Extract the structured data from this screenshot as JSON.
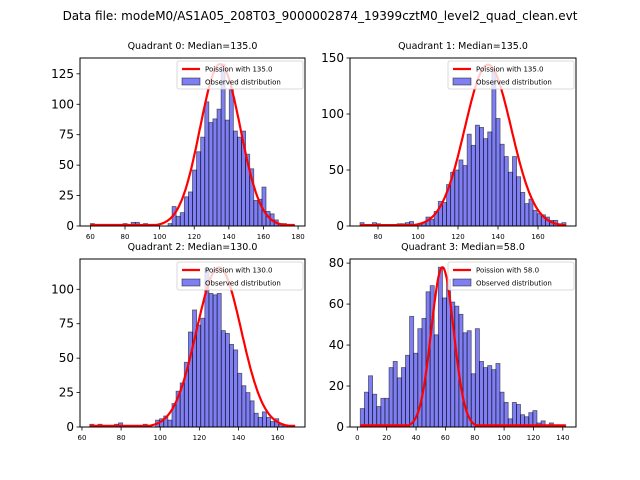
{
  "suptitle": "Data file: modeM0/AS1A05_208T03_9000002874_19399cztM0_level2_quad_clean.evt",
  "chart_data": [
    {
      "type": "bar",
      "title": "Quadrant 0: Median=135.0",
      "xlim": [
        54,
        184
      ],
      "ylim": [
        0,
        138
      ],
      "xticks": [
        60,
        80,
        100,
        120,
        140,
        160,
        180
      ],
      "yticks": [
        0,
        25,
        50,
        75,
        100,
        125
      ],
      "bin_start": 60,
      "bin_width": 2.36,
      "values": [
        2,
        0,
        0,
        0,
        1,
        0,
        0,
        0,
        2,
        0,
        3,
        3,
        0,
        2,
        0,
        0,
        0,
        0,
        0,
        2,
        16,
        8,
        11,
        24,
        28,
        46,
        61,
        73,
        102,
        85,
        88,
        96,
        133,
        87,
        112,
        78,
        73,
        78,
        59,
        47,
        21,
        22,
        32,
        12,
        10,
        5,
        2,
        2,
        1,
        1
      ],
      "legend": {
        "line_label": "Poission with 135.0",
        "bar_label": "Observed distribution"
      },
      "poisson_mean": 135.0,
      "poisson_peak": 133
    },
    {
      "type": "bar",
      "title": "Quadrant 1: Median=135.0",
      "xlim": [
        66,
        179
      ],
      "ylim": [
        0,
        150
      ],
      "xticks": [
        80,
        100,
        120,
        140,
        160
      ],
      "yticks": [
        0,
        50,
        100,
        150
      ],
      "bin_start": 71,
      "bin_width": 2.06,
      "values": [
        3,
        0,
        0,
        3,
        2,
        0,
        0,
        0,
        0,
        2,
        2,
        3,
        4,
        0,
        2,
        3,
        8,
        6,
        13,
        22,
        21,
        37,
        48,
        50,
        59,
        54,
        82,
        72,
        90,
        88,
        78,
        84,
        138,
        96,
        73,
        62,
        48,
        62,
        44,
        30,
        20,
        24,
        14,
        11,
        10,
        8,
        5,
        5,
        2,
        3
      ],
      "legend": {
        "line_label": "Poission with 135.0",
        "bar_label": "Observed distribution"
      },
      "poisson_mean": 135.0,
      "poisson_peak": 144
    },
    {
      "type": "bar",
      "title": "Quadrant 2: Median=130.0",
      "xlim": [
        59,
        174
      ],
      "ylim": [
        0,
        122
      ],
      "xticks": [
        60,
        80,
        100,
        120,
        140,
        160
      ],
      "yticks": [
        0,
        25,
        50,
        75,
        100
      ],
      "bin_start": 64,
      "bin_width": 2.1,
      "values": [
        2,
        0,
        2,
        0,
        0,
        0,
        2,
        3,
        0,
        0,
        0,
        0,
        0,
        2,
        0,
        0,
        5,
        6,
        8,
        5,
        17,
        26,
        32,
        47,
        69,
        85,
        74,
        79,
        115,
        97,
        96,
        97,
        70,
        68,
        60,
        56,
        39,
        30,
        25,
        19,
        10,
        7,
        11,
        7,
        4,
        6,
        2,
        1,
        0,
        0
      ],
      "legend": {
        "line_label": "Poission with 130.0",
        "bar_label": "Observed distribution"
      },
      "poisson_mean": 130.0,
      "poisson_peak": 116
    },
    {
      "type": "bar",
      "title": "Quadrant 3: Median=58.0",
      "xlim": [
        -5,
        149
      ],
      "ylim": [
        0,
        82
      ],
      "xticks": [
        0,
        20,
        40,
        60,
        80,
        100,
        120,
        140
      ],
      "yticks": [
        0,
        20,
        40,
        60,
        80
      ],
      "bin_start": 2,
      "bin_width": 2.8,
      "values": [
        9,
        17,
        25,
        16,
        10,
        14,
        14,
        29,
        32,
        24,
        29,
        35,
        54,
        36,
        48,
        53,
        66,
        69,
        45,
        78,
        63,
        72,
        61,
        59,
        55,
        46,
        47,
        26,
        48,
        32,
        29,
        30,
        28,
        31,
        17,
        12,
        4,
        12,
        11,
        6,
        5,
        7,
        8,
        2,
        3,
        1,
        2,
        1,
        1,
        1
      ],
      "legend": {
        "line_label": "Poission with 58.0",
        "bar_label": "Observed distribution"
      },
      "poisson_mean": 58.0,
      "poisson_peak": 78
    }
  ]
}
